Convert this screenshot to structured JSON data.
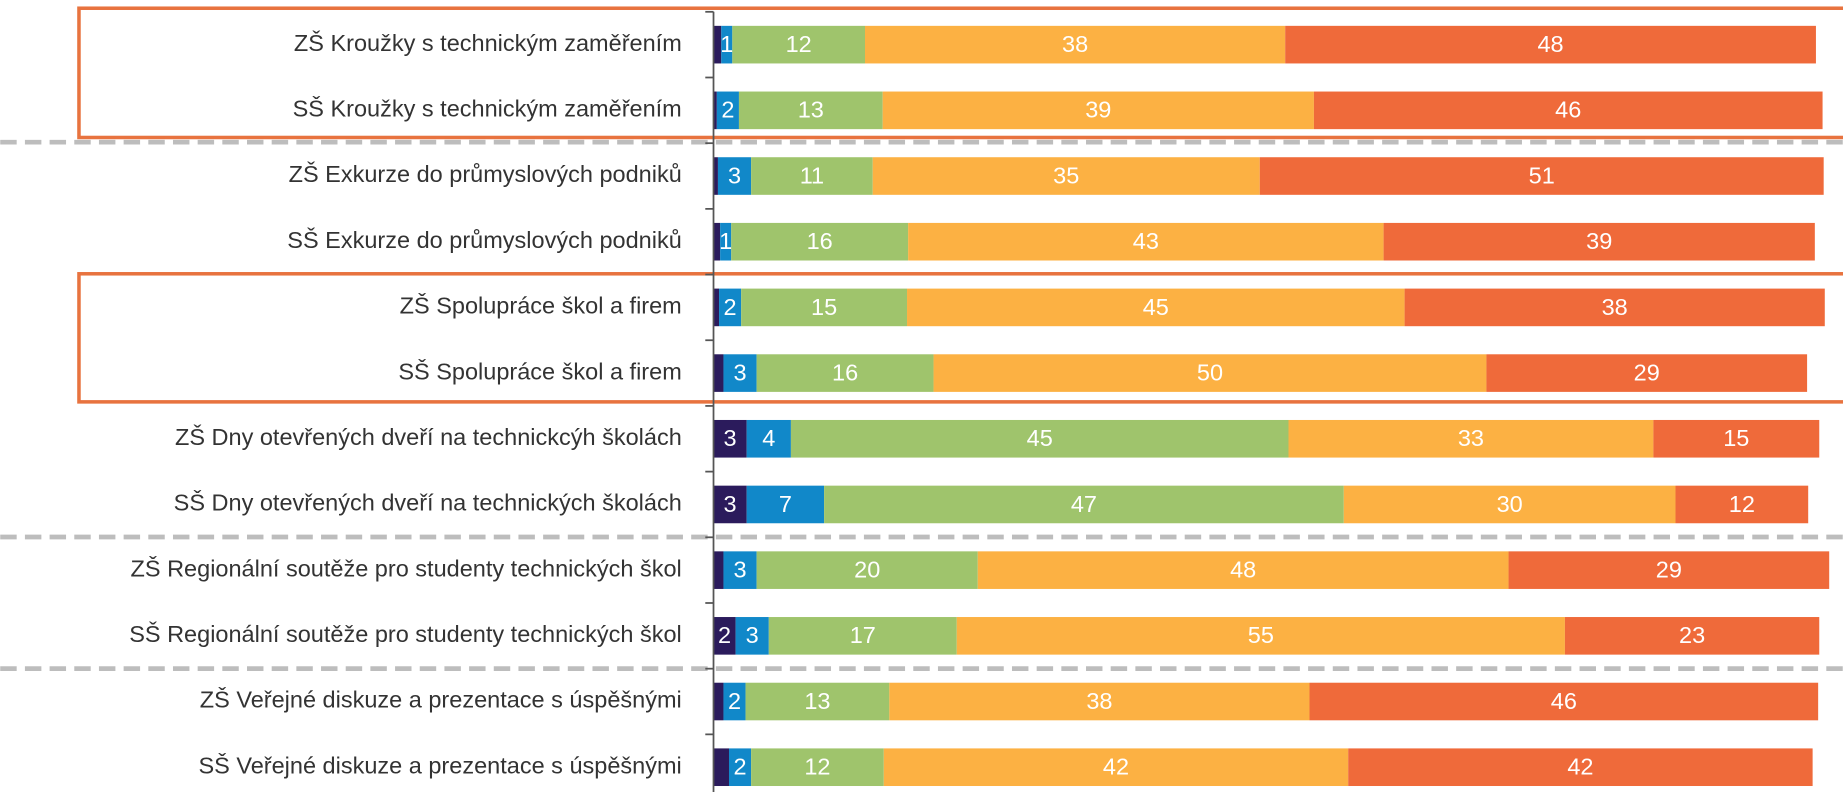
{
  "chart_data": {
    "type": "stacked_barh",
    "categories": [
      "ZŠ Kroužky s technickým zaměřením",
      "SŠ Kroužky s technickým zaměřením",
      "ZŠ Exkurze do průmyslových podniků",
      "SŠ Exkurze do průmyslových podniků",
      "ZŠ Spolupráce škol a firem",
      "SŠ Spolupráce škol a firem",
      "ZŠ Dny otevřených dveří na technickcýh školách",
      "SŠ Dny otevřených dveří na technických školách",
      "ZŠ Regionální soutěže pro studenty technických škol",
      "SŠ Regionální soutěže pro studenty technických škol",
      "ZŠ Veřejné diskuze a prezentace s úspěšnými",
      "SŠ Veřejné diskuze a prezentace s úspěšnými"
    ],
    "series": [
      {
        "color": "#2b1b5c",
        "values": [
          0.7,
          0.3,
          0.4,
          0.6,
          0.5,
          0.9,
          3,
          3,
          0.9,
          2,
          0.9,
          1.4
        ],
        "value_labels": [
          null,
          null,
          null,
          null,
          null,
          null,
          "3",
          "3",
          null,
          "2",
          null,
          null
        ]
      },
      {
        "color": "#1188c9",
        "values": [
          1,
          2,
          3,
          1,
          2,
          3,
          4,
          7,
          3,
          3,
          2,
          2
        ]
      },
      {
        "color": "#9fc46c",
        "values": [
          12,
          13,
          11,
          16,
          15,
          16,
          45,
          47,
          20,
          17,
          13,
          12
        ]
      },
      {
        "color": "#fcb143",
        "values": [
          38,
          39,
          35,
          43,
          45,
          50,
          33,
          30,
          48,
          55,
          38,
          42
        ]
      },
      {
        "color": "#ef6a3a",
        "values": [
          48,
          46,
          51,
          39,
          38,
          29,
          15,
          12,
          29,
          23,
          46,
          42
        ]
      }
    ],
    "xlim": [
      0,
      100
    ]
  }
}
